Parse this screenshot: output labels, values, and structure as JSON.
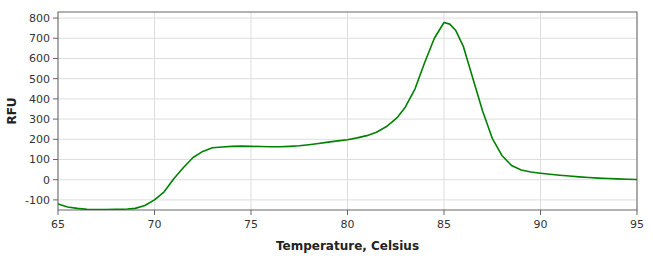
{
  "chart_data": {
    "type": "line",
    "xlabel": "Temperature, Celsius",
    "ylabel": "RFU",
    "x": [
      65.0,
      65.5,
      66.0,
      66.5,
      67.0,
      67.5,
      68.0,
      68.3,
      68.6,
      69.0,
      69.5,
      70.0,
      70.5,
      71.0,
      71.5,
      72.0,
      72.5,
      73.0,
      73.5,
      74.0,
      74.5,
      75.0,
      75.5,
      76.0,
      76.5,
      77.0,
      77.5,
      78.0,
      78.5,
      79.0,
      79.5,
      80.0,
      80.5,
      81.0,
      81.5,
      82.0,
      82.3,
      82.6,
      83.0,
      83.5,
      84.0,
      84.5,
      85.0,
      85.3,
      85.6,
      86.0,
      86.5,
      87.0,
      87.5,
      88.0,
      88.5,
      89.0,
      89.5,
      90.0,
      90.5,
      91.0,
      91.5,
      92.0,
      92.5,
      93.0,
      93.5,
      94.0,
      94.5,
      95.0
    ],
    "values": [
      -120,
      -135,
      -142,
      -147,
      -148,
      -148,
      -147,
      -146,
      -145,
      -142,
      -128,
      -100,
      -60,
      5,
      60,
      110,
      140,
      158,
      162,
      165,
      166,
      165,
      164,
      163,
      163,
      165,
      168,
      173,
      179,
      186,
      192,
      198,
      207,
      218,
      235,
      262,
      285,
      310,
      360,
      450,
      580,
      700,
      778,
      770,
      740,
      660,
      500,
      340,
      205,
      120,
      70,
      48,
      38,
      32,
      27,
      22,
      18,
      14,
      11,
      8,
      6,
      4,
      2,
      1
    ],
    "color": "#008000",
    "xlim": [
      65,
      95
    ],
    "ylim": [
      -150,
      830
    ],
    "xticks": [
      65,
      70,
      75,
      80,
      85,
      90,
      95
    ],
    "yticks": [
      -100,
      0,
      100,
      200,
      300,
      400,
      500,
      600,
      700,
      800
    ],
    "grid": true
  }
}
